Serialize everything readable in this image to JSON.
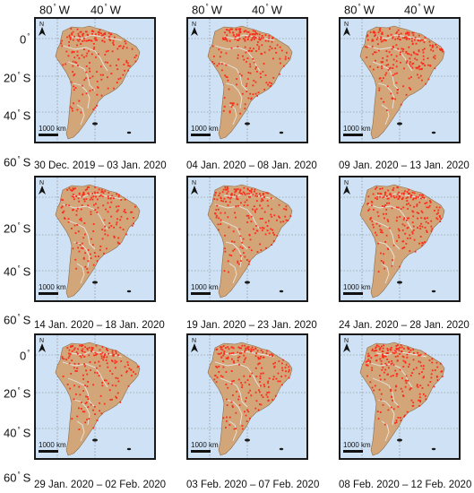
{
  "colors": {
    "ocean": "#cfe2f5",
    "land": "#d2a679",
    "fire": "#ff2a1a",
    "border": "#e6e6e6",
    "frame": "#1a1a1a"
  },
  "axes": {
    "top_labels": [
      "80",
      "W",
      "40",
      "W"
    ],
    "left_labels": [
      "0",
      "20",
      "S",
      "40",
      "S",
      "60",
      "S"
    ],
    "degree_symbol": "°"
  },
  "scale_bar_label": "1000 km",
  "north_arrow_label": "N",
  "panels": [
    {
      "date_range": "30 Dec. 2019 – 03 Jan. 2020"
    },
    {
      "date_range": "04 Jan. 2020 – 08 Jan. 2020"
    },
    {
      "date_range": "09 Jan. 2020 – 13 Jan. 2020"
    },
    {
      "date_range": "14 Jan. 2020 – 18 Jan. 2020"
    },
    {
      "date_range": "19 Jan. 2020 – 23 Jan. 2020"
    },
    {
      "date_range": "24 Jan. 2020 – 28 Jan. 2020"
    },
    {
      "date_range": "29 Jan. 2020 – 02 Feb. 2020"
    },
    {
      "date_range": "03 Feb. 2020 – 07 Feb. 2020"
    },
    {
      "date_range": "08 Feb. 2020 – 12 Feb. 2020"
    }
  ]
}
